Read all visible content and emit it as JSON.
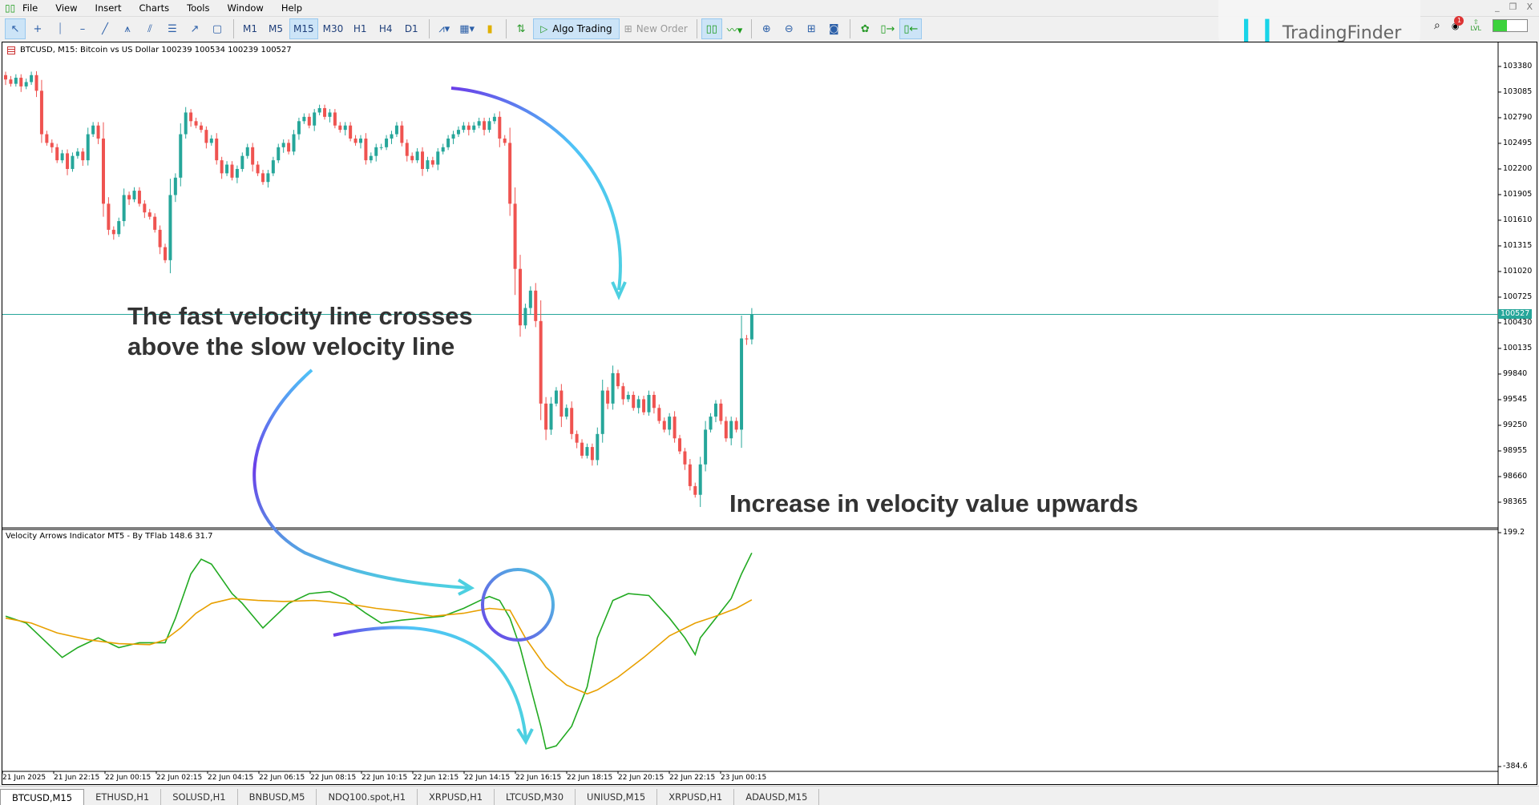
{
  "menu": {
    "items": [
      "File",
      "View",
      "Insert",
      "Charts",
      "Tools",
      "Window",
      "Help"
    ]
  },
  "window_controls": [
    "_",
    "❐",
    "X"
  ],
  "toolbar": {
    "tools": [
      {
        "name": "cursor",
        "glyph": "↖"
      },
      {
        "name": "crosshair",
        "glyph": "+"
      },
      {
        "name": "vertical-line",
        "glyph": "⏐"
      },
      {
        "name": "horizontal-line",
        "glyph": "–"
      },
      {
        "name": "trendline",
        "glyph": "╱"
      },
      {
        "name": "pitchfork",
        "glyph": "⩚"
      },
      {
        "name": "channel",
        "glyph": "⫽"
      },
      {
        "name": "fibonacci",
        "glyph": "☰"
      },
      {
        "name": "arrow-line",
        "glyph": "↗"
      },
      {
        "name": "rectangle",
        "glyph": "▢"
      }
    ],
    "timeframes": [
      "M1",
      "M5",
      "M15",
      "M30",
      "H1",
      "H4",
      "D1"
    ],
    "active_timeframe": "M15",
    "algo_trading": "Algo Trading",
    "new_order": "New Order"
  },
  "logo": {
    "text": "TradingFinder"
  },
  "notifications": {
    "count": "1"
  },
  "level": {
    "label": "LVL",
    "fill_fraction": 0.4,
    "color": "#3cd23c"
  },
  "chart": {
    "header": "BTCUSD, M15:  Bitcoin vs US Dollar  100239 100534 100239 100527",
    "current_price": "100527",
    "price_ticks": [
      "103380",
      "103085",
      "102790",
      "102495",
      "102200",
      "101905",
      "101610",
      "101315",
      "101020",
      "100725",
      "100430",
      "100135",
      "99840",
      "99545",
      "99250",
      "98955",
      "98660",
      "98365"
    ],
    "time_ticks": [
      "21 Jun 2025",
      "21 Jun 22:15",
      "22 Jun 00:15",
      "22 Jun 02:15",
      "22 Jun 04:15",
      "22 Jun 06:15",
      "22 Jun 08:15",
      "22 Jun 10:15",
      "22 Jun 12:15",
      "22 Jun 14:15",
      "22 Jun 16:15",
      "22 Jun 18:15",
      "22 Jun 20:15",
      "22 Jun 22:15",
      "23 Jun 00:15"
    ],
    "colors": {
      "bull": "#26a69a",
      "bear": "#ef5350",
      "price_line": "#26a69a"
    }
  },
  "indicator": {
    "label": "Velocity Arrows Indicator MT5 - By TFlab 148.6 31.7",
    "scale_max": "199.2",
    "scale_min": "-384.6",
    "colors": {
      "fast": "#22aa22",
      "slow": "#e8a000"
    }
  },
  "annotations": {
    "cross_text_1": "The fast velocity line crosses",
    "cross_text_2": "above the slow velocity line",
    "increase_text": "Increase in velocity value upwards"
  },
  "tabs": [
    "BTCUSD,M15",
    "ETHUSD,H1",
    "SOLUSD,H1",
    "BNBUSD,M5",
    "NDQ100.spot,H1",
    "XRPUSD,H1",
    "LTCUSD,M30",
    "UNIUSD,M15",
    "XRPUSD,H1",
    "ADAUSD,M15"
  ],
  "active_tab": "BTCUSD,M15",
  "chart_data": [
    {
      "type": "candlestick",
      "ylim": [
        98079,
        103656
      ],
      "closes": [
        103230,
        103180,
        103250,
        103150,
        103200,
        103280,
        103100,
        102600,
        102500,
        102450,
        102300,
        102380,
        102200,
        102350,
        102400,
        102300,
        102600,
        102700,
        102550,
        101800,
        101500,
        101450,
        101600,
        101900,
        101850,
        101950,
        101800,
        101700,
        101650,
        101500,
        101300,
        101150,
        101900,
        102100,
        102600,
        102850,
        102750,
        102700,
        102650,
        102500,
        102550,
        102300,
        102150,
        102250,
        102100,
        102200,
        102350,
        102450,
        102250,
        102150,
        102050,
        102150,
        102300,
        102450,
        102500,
        102400,
        102600,
        102750,
        102800,
        102700,
        102850,
        102900,
        102800,
        102850,
        102700,
        102650,
        102700,
        102550,
        102500,
        102550,
        102300,
        102350,
        102450,
        102450,
        102550,
        102600,
        102700,
        102500,
        102350,
        102300,
        102400,
        102200,
        102300,
        102250,
        102400,
        102450,
        102550,
        102600,
        102650,
        102700,
        102650,
        102700,
        102750,
        102650,
        102750,
        102800,
        102550,
        102500,
        101800,
        101050,
        100400,
        100600,
        100800,
        100450,
        99500,
        99200,
        99500,
        99650,
        99350,
        99450,
        99150,
        99050,
        98900,
        99000,
        98850,
        99150,
        99650,
        99500,
        99850,
        99700,
        99550,
        99600,
        99450,
        99550,
        99400,
        99600,
        99450,
        99300,
        99200,
        99350,
        99100,
        98950,
        98800,
        98550,
        98450,
        98800,
        99200,
        99350,
        99500,
        99300,
        99100,
        99300,
        99200,
        100250,
        100239,
        100527
      ]
    },
    {
      "type": "line",
      "ylim": [
        -384.6,
        199.2
      ],
      "series": [
        {
          "key": "fast",
          "bars": [
            0,
            4,
            8,
            11,
            14,
            18,
            22,
            26,
            31,
            33,
            36,
            38,
            40,
            42,
            44,
            46,
            50,
            52,
            55,
            59,
            63,
            66,
            70,
            73,
            77,
            81,
            85,
            89,
            93,
            94,
            96,
            98,
            100,
            102,
            104,
            105,
            107,
            110,
            113,
            115,
            118,
            121,
            125,
            129,
            132,
            134,
            135,
            138,
            141,
            143,
            145
          ],
          "values": [
            -9.3,
            -26.5,
            -75.5,
            -112.3,
            -87.8,
            -63.3,
            -87.8,
            -75.5,
            -75.5,
            -14.2,
            96.2,
            133,
            120.7,
            84,
            47.1,
            22.6,
            -38.7,
            -14.2,
            22.6,
            47.1,
            52,
            34.9,
            -1.9,
            -26.5,
            -19.1,
            -14.2,
            -9.3,
            10.3,
            34.9,
            39.8,
            30,
            -14.2,
            -87.8,
            -185.9,
            -284,
            -340.5,
            -333.1,
            -284,
            -185.9,
            -63.3,
            30,
            47.1,
            42.2,
            -14.2,
            -63.3,
            -105,
            -63.3,
            -14.2,
            34.9,
            96.2,
            148.6
          ]
        },
        {
          "key": "slow",
          "bars": [
            0,
            5,
            10,
            16,
            22,
            28,
            31,
            34,
            37,
            40,
            44,
            49,
            54,
            60,
            66,
            72,
            77,
            83,
            89,
            94,
            98,
            101,
            105,
            109,
            113,
            115,
            119,
            124,
            129,
            134,
            138,
            142,
            145
          ],
          "values": [
            -14.2,
            -26.5,
            -51,
            -68.2,
            -78,
            -80.4,
            -68.2,
            -38.7,
            -1.9,
            22.6,
            34.9,
            30,
            27.5,
            30,
            22.6,
            10.3,
            3,
            -9.3,
            -1.9,
            10.3,
            5.4,
            -63.3,
            -136.9,
            -181,
            -203.1,
            -193.3,
            -161.4,
            -112.3,
            -58.4,
            -26.5,
            -9.3,
            10.3,
            31.7
          ]
        }
      ]
    }
  ]
}
